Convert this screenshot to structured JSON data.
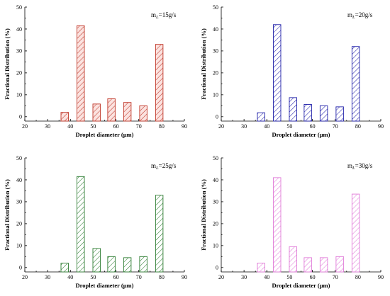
{
  "figure": {
    "charts": [
      {
        "id": "tl",
        "legend_main": "m",
        "legend_sub": "L",
        "legend_rest": "=15g/s",
        "color": "#c0392b",
        "fill": "#fbe3e0"
      },
      {
        "id": "tr",
        "legend_main": "m",
        "legend_sub": "L",
        "legend_rest": "=20g/s",
        "color": "#1f1fa8",
        "fill": "#ffffff"
      },
      {
        "id": "bl",
        "legend_main": "m",
        "legend_sub": "L",
        "legend_rest": "=25g/s",
        "color": "#2e7d32",
        "fill": "#ffffff"
      },
      {
        "id": "br",
        "legend_main": "m",
        "legend_sub": "L",
        "legend_rest": "=30g/s",
        "color": "#e07ad8",
        "fill": "#ffffff"
      }
    ]
  },
  "chart_data": [
    {
      "type": "bar",
      "xlabel": "Droplet diameter (μm)",
      "ylabel": "Fractional Distribution (%)",
      "xlim": [
        20,
        90
      ],
      "ylim": [
        -2,
        50
      ],
      "xticks": [
        20,
        30,
        40,
        50,
        60,
        70,
        80,
        90
      ],
      "yticks": [
        0,
        10,
        20,
        30,
        40,
        50
      ],
      "x": [
        37.5,
        44.5,
        51.5,
        58,
        65,
        72,
        79
      ],
      "values": [
        2.0,
        41.5,
        5.8,
        8.2,
        6.5,
        5.0,
        33.0
      ]
    },
    {
      "type": "bar",
      "xlabel": "Droplet diameter (μm)",
      "ylabel": "Fractional Distribution (%)",
      "xlim": [
        20,
        90
      ],
      "ylim": [
        -2,
        50
      ],
      "xticks": [
        20,
        30,
        40,
        50,
        60,
        70,
        80,
        90
      ],
      "yticks": [
        0,
        10,
        20,
        30,
        40,
        50
      ],
      "x": [
        37.5,
        44.5,
        51.5,
        58,
        65,
        72,
        79
      ],
      "values": [
        1.8,
        42.0,
        8.7,
        5.6,
        5.0,
        4.5,
        32.0
      ]
    },
    {
      "type": "bar",
      "xlabel": "Droplet diameter (μm)",
      "ylabel": "Fractional Distribution (%)",
      "xlim": [
        20,
        90
      ],
      "ylim": [
        -2,
        50
      ],
      "xticks": [
        20,
        30,
        40,
        50,
        60,
        70,
        80,
        90
      ],
      "yticks": [
        0,
        10,
        20,
        30,
        40,
        50
      ],
      "x": [
        37.5,
        44.5,
        51.5,
        58,
        65,
        72,
        79
      ],
      "values": [
        2.0,
        41.5,
        8.7,
        5.0,
        4.5,
        5.0,
        33.0
      ]
    },
    {
      "type": "bar",
      "xlabel": "Droplet diameter (μm)",
      "ylabel": "Fractional Distribution (%)",
      "xlim": [
        20,
        90
      ],
      "ylim": [
        -2,
        50
      ],
      "xticks": [
        20,
        30,
        40,
        50,
        60,
        70,
        80,
        90
      ],
      "yticks": [
        0,
        10,
        20,
        30,
        40,
        50
      ],
      "x": [
        37.5,
        44.5,
        51.5,
        58,
        65,
        72,
        79
      ],
      "values": [
        2.0,
        41.0,
        9.5,
        4.5,
        4.5,
        5.0,
        33.5
      ]
    }
  ]
}
